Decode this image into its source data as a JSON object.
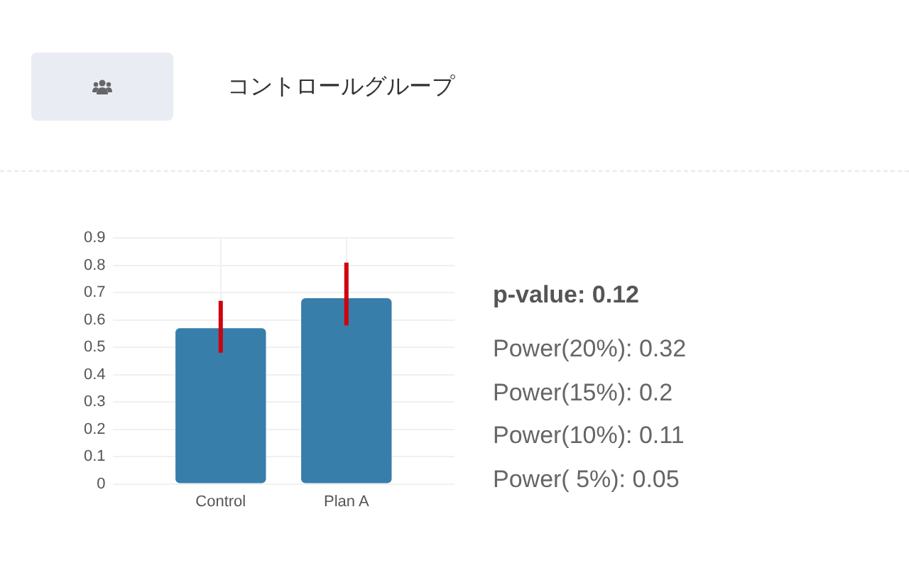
{
  "chart_data": {
    "type": "bar",
    "title": "コントロールグループ",
    "categories": [
      "Control",
      "Plan A"
    ],
    "values": [
      0.57,
      0.68
    ],
    "errors": [
      [
        0.48,
        0.67
      ],
      [
        0.58,
        0.81
      ]
    ],
    "color": "#377eab",
    "ylim": [
      0,
      0.9
    ],
    "yticks": [
      0,
      0.1,
      0.2,
      0.3,
      0.4,
      0.5,
      0.6,
      0.7,
      0.8,
      0.9
    ],
    "grid": true,
    "annotations": [
      "p-value: 0.12",
      "Power(20%): 0.32",
      "Power(15%): 0.2",
      "Power(10%): 0.11",
      "Power( 5%): 0.05"
    ]
  }
}
